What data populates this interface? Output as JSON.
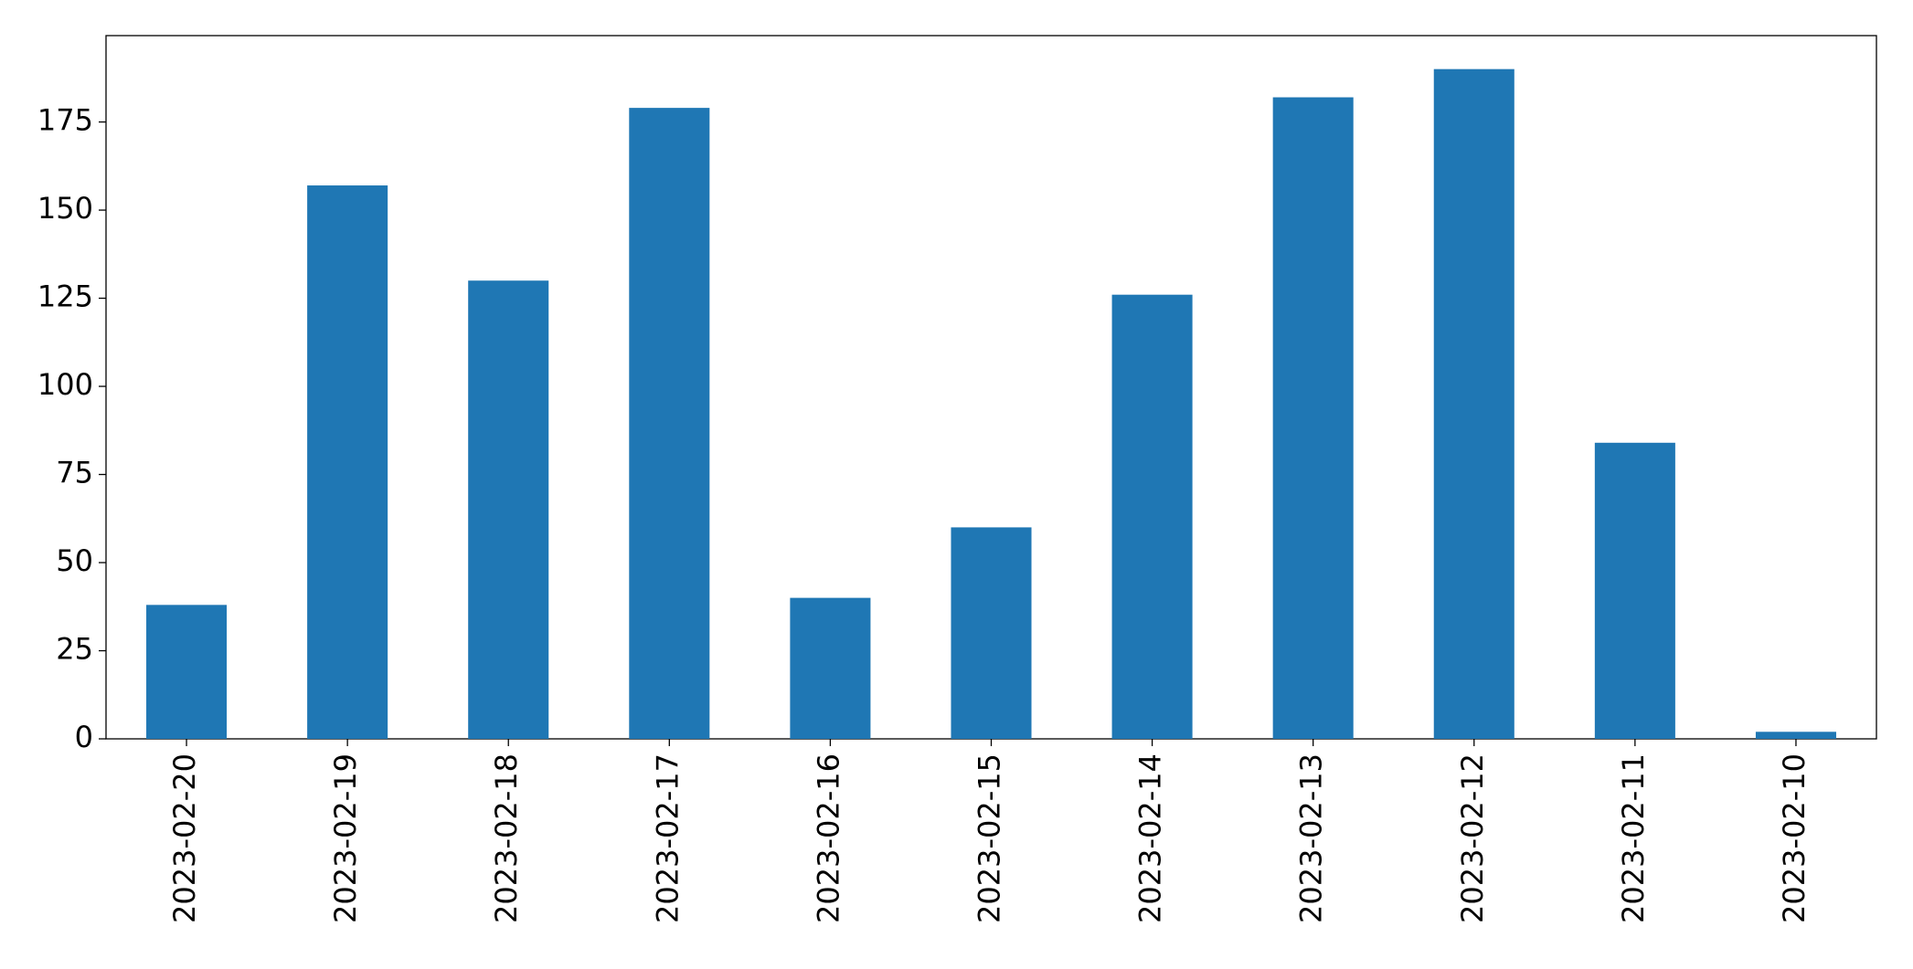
{
  "chart_data": {
    "type": "bar",
    "categories": [
      "2023-02-20",
      "2023-02-19",
      "2023-02-18",
      "2023-02-17",
      "2023-02-16",
      "2023-02-15",
      "2023-02-14",
      "2023-02-13",
      "2023-02-12",
      "2023-02-11",
      "2023-02-10"
    ],
    "values": [
      38,
      157,
      130,
      179,
      40,
      60,
      126,
      182,
      190,
      84,
      2
    ],
    "color": "#1f77b4",
    "ylim": [
      0,
      199.5
    ],
    "yticks": [
      0,
      25,
      50,
      75,
      100,
      125,
      150,
      175
    ],
    "grid": false
  }
}
